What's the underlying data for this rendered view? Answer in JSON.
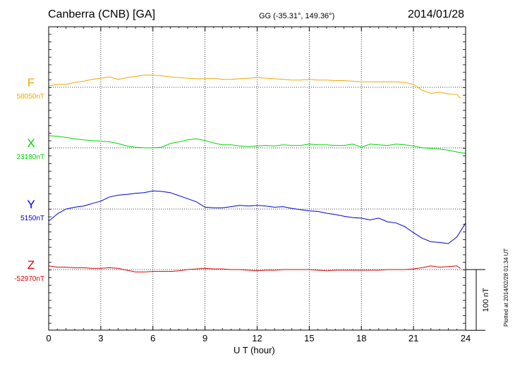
{
  "header": {
    "station": "Canberra (CNB)  [GA]",
    "coords": "GG (-35.31°, 149.36°)",
    "date": "2014/01/28"
  },
  "footer": {
    "plotted": "Plotted at 2014/02/28 01:34 UT"
  },
  "scale_bar": {
    "label": "100 nT",
    "value_nT": 100
  },
  "chart_data": {
    "type": "line",
    "title": "Canberra (CNB)  [GA]",
    "xlabel": "U T (hour)",
    "xlim": [
      0,
      24
    ],
    "xticks": [
      0,
      3,
      6,
      9,
      12,
      15,
      18,
      21,
      24
    ],
    "grid": true,
    "series": [
      {
        "name": "F",
        "baseline_label": "58050nT",
        "baseline_nT": 58050,
        "color": "#f0a800",
        "x": [
          0,
          0.5,
          1,
          1.5,
          2,
          2.5,
          3,
          3.5,
          4,
          4.5,
          5,
          5.5,
          6,
          6.5,
          7,
          7.5,
          8,
          8.5,
          9,
          9.5,
          10,
          10.5,
          11,
          11.5,
          12,
          12.5,
          13,
          13.5,
          14,
          14.5,
          15,
          15.5,
          16,
          16.5,
          17,
          17.5,
          18,
          18.5,
          19,
          19.5,
          20,
          20.5,
          21,
          21.5,
          22,
          22.5,
          23,
          23.5,
          23.7
        ],
        "y": [
          58052,
          58055,
          58055,
          58058,
          58060,
          58063,
          58065,
          58067,
          58063,
          58066,
          58068,
          58070,
          58070,
          58069,
          58067,
          58066,
          58065,
          58064,
          58064,
          58065,
          58063,
          58063,
          58064,
          58065,
          58066,
          58065,
          58064,
          58063,
          58062,
          58062,
          58063,
          58062,
          58062,
          58061,
          58061,
          58060,
          58059,
          58059,
          58059,
          58059,
          58059,
          58058,
          58055,
          58045,
          58040,
          58042,
          58039,
          58038,
          58032
        ]
      },
      {
        "name": "X",
        "baseline_label": "23180nT",
        "baseline_nT": 23180,
        "color": "#00d800",
        "x": [
          0,
          0.5,
          1,
          1.5,
          2,
          2.5,
          3,
          3.5,
          4,
          4.5,
          5,
          5.5,
          6,
          6.5,
          7,
          7.5,
          8,
          8.5,
          9,
          9.5,
          10,
          10.5,
          11,
          11.5,
          12,
          12.5,
          13,
          13.5,
          14,
          14.5,
          15,
          15.5,
          16,
          16.5,
          17,
          17.5,
          18,
          18.5,
          19,
          19.5,
          20,
          20.5,
          21,
          21.5,
          22,
          22.5,
          23,
          23.5,
          24
        ],
        "y": [
          23200,
          23199,
          23197,
          23195,
          23193,
          23192,
          23191,
          23190,
          23187,
          23183,
          23181,
          23180,
          23180,
          23181,
          23187,
          23190,
          23193,
          23195,
          23192,
          23188,
          23185,
          23185,
          23183,
          23182,
          23183,
          23184,
          23183,
          23185,
          23184,
          23184,
          23186,
          23185,
          23185,
          23184,
          23184,
          23186,
          23181,
          23186,
          23185,
          23184,
          23186,
          23185,
          23183,
          23180,
          23179,
          23178,
          23176,
          23173,
          23171
        ]
      },
      {
        "name": "Y",
        "baseline_label": "5150nT",
        "baseline_nT": 5150,
        "color": "#0000dd",
        "x": [
          0,
          0.5,
          1,
          1.5,
          2,
          2.5,
          3,
          3.5,
          4,
          4.5,
          5,
          5.5,
          6,
          6.5,
          7,
          7.5,
          8,
          8.5,
          9,
          9.5,
          10,
          10.5,
          11,
          11.5,
          12,
          12.5,
          13,
          13.5,
          14,
          14.5,
          15,
          15.5,
          16,
          16.5,
          17,
          17.5,
          18,
          18.5,
          19,
          19.5,
          20,
          20.5,
          21,
          21.5,
          22,
          22.5,
          23,
          23.5,
          24
        ],
        "y": [
          5130,
          5142,
          5150,
          5153,
          5155,
          5159,
          5163,
          5170,
          5173,
          5174,
          5176,
          5177,
          5180,
          5179,
          5177,
          5172,
          5167,
          5162,
          5153,
          5152,
          5152,
          5154,
          5156,
          5155,
          5156,
          5155,
          5153,
          5154,
          5151,
          5149,
          5147,
          5146,
          5143,
          5141,
          5138,
          5136,
          5135,
          5132,
          5135,
          5129,
          5127,
          5121,
          5111,
          5102,
          5096,
          5095,
          5093,
          5104,
          5127
        ]
      },
      {
        "name": "Z",
        "baseline_label": "-52970nT",
        "baseline_nT": -52970,
        "color": "#dd0000",
        "x": [
          0,
          0.5,
          1,
          1.5,
          2,
          2.5,
          3,
          3.5,
          4,
          4.5,
          5,
          5.5,
          6,
          6.5,
          7,
          7.5,
          8,
          8.5,
          9,
          9.5,
          10,
          10.5,
          11,
          11.5,
          12,
          12.5,
          13,
          13.5,
          14,
          14.5,
          15,
          15.5,
          16,
          16.5,
          17,
          17.5,
          18,
          18.5,
          19,
          19.5,
          20,
          20.5,
          21,
          21.5,
          22,
          22.5,
          23,
          23.5,
          23.7
        ],
        "y": [
          -52964,
          -52966,
          -52966,
          -52967,
          -52967,
          -52968,
          -52968,
          -52967,
          -52968,
          -52971,
          -52974,
          -52974,
          -52973,
          -52973,
          -52973,
          -52972,
          -52970,
          -52969,
          -52968,
          -52969,
          -52969,
          -52970,
          -52970,
          -52971,
          -52972,
          -52971,
          -52971,
          -52970,
          -52970,
          -52970,
          -52970,
          -52971,
          -52972,
          -52971,
          -52971,
          -52971,
          -52971,
          -52971,
          -52971,
          -52970,
          -52970,
          -52970,
          -52969,
          -52967,
          -52964,
          -52966,
          -52965,
          -52964,
          -52968
        ]
      }
    ]
  }
}
